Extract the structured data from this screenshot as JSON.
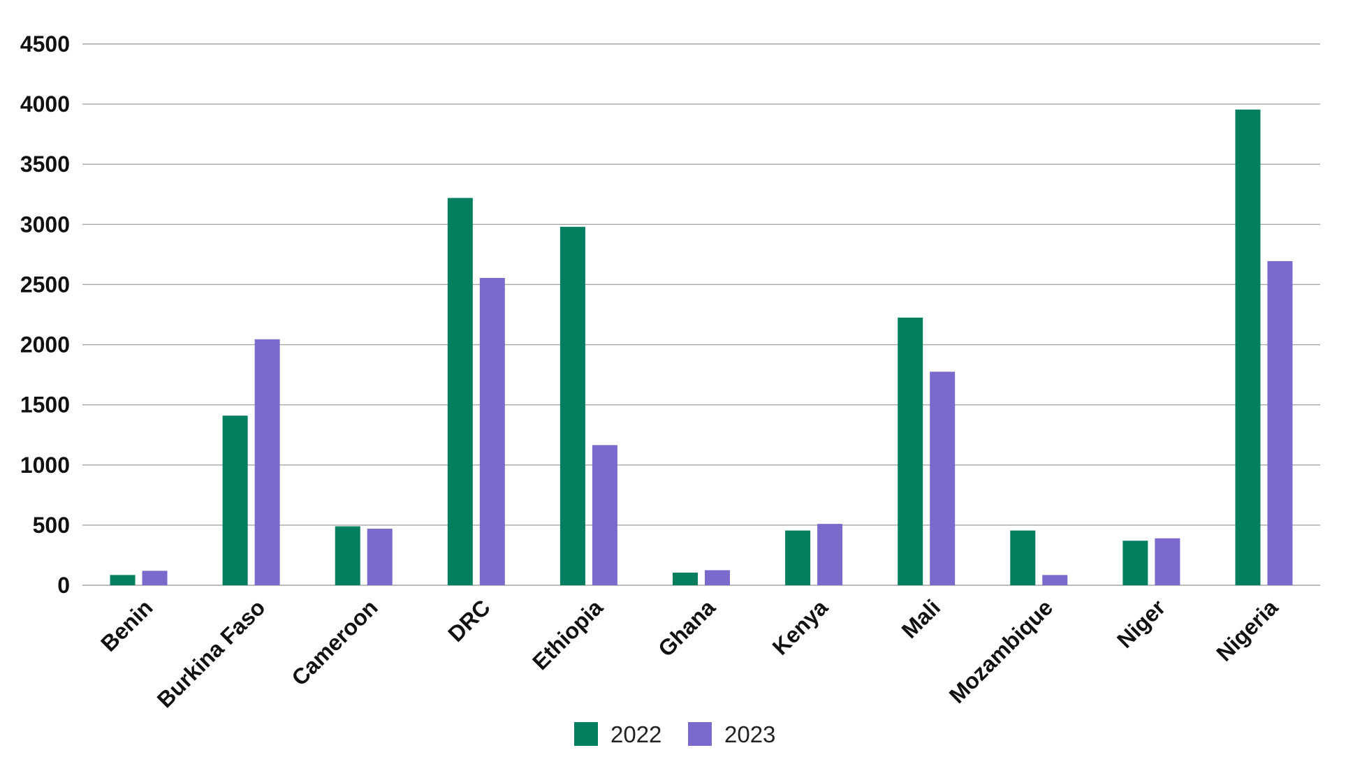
{
  "chart_data": {
    "type": "bar",
    "title": "",
    "xlabel": "",
    "ylabel": "",
    "ylim": [
      0,
      4500
    ],
    "yticks": [
      0,
      500,
      1000,
      1500,
      2000,
      2500,
      3000,
      3500,
      4000,
      4500
    ],
    "grid": true,
    "legend_position": "bottom",
    "categories": [
      "Benin",
      "Burkina Faso",
      "Cameroon",
      "DRC",
      "Ethiopia",
      "Ghana",
      "Kenya",
      "Mali",
      "Mozambique",
      "Niger",
      "Nigeria"
    ],
    "series": [
      {
        "name": "2022",
        "color": "#037f5f",
        "values": [
          85,
          1410,
          490,
          3220,
          2980,
          105,
          455,
          2225,
          455,
          370,
          3955
        ]
      },
      {
        "name": "2023",
        "color": "#7b6acb",
        "values": [
          120,
          2045,
          470,
          2555,
          1165,
          125,
          510,
          1775,
          85,
          390,
          2695
        ]
      }
    ]
  }
}
